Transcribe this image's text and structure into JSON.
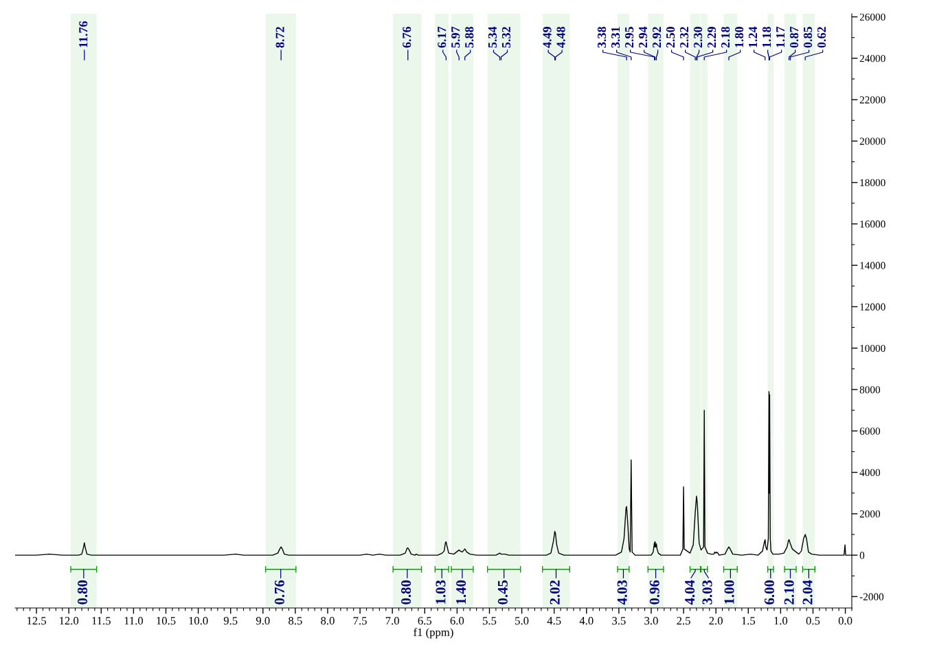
{
  "chart_data": {
    "type": "line",
    "xlabel": "f1 (ppm)",
    "color": "#000000",
    "x": [
      12.83,
      12.5,
      12.3,
      12.1,
      11.85,
      11.8,
      11.775,
      11.76,
      11.745,
      11.72,
      11.65,
      9.6,
      9.42,
      9.3,
      8.85,
      8.77,
      8.74,
      8.72,
      8.7,
      8.67,
      8.6,
      7.5,
      7.4,
      7.3,
      7.2,
      7.1,
      6.88,
      6.8,
      6.77,
      6.76,
      6.74,
      6.71,
      6.65,
      6.63,
      6.6,
      6.3,
      6.23,
      6.2,
      6.18,
      6.17,
      6.16,
      6.13,
      6.05,
      5.99,
      5.97,
      5.95,
      5.92,
      5.88,
      5.85,
      5.8,
      5.7,
      5.4,
      5.34,
      5.32,
      5.29,
      5.26,
      5.2,
      4.62,
      4.55,
      4.51,
      4.49,
      4.48,
      4.46,
      4.43,
      4.35,
      3.55,
      3.46,
      3.42,
      3.39,
      3.38,
      3.36,
      3.34,
      3.325,
      3.31,
      3.295,
      3.25,
      3.0,
      2.97,
      2.95,
      2.945,
      2.94,
      2.93,
      2.92,
      2.91,
      2.89,
      2.85,
      2.55,
      2.51,
      2.5,
      2.49,
      2.4,
      2.35,
      2.32,
      2.3,
      2.29,
      2.28,
      2.26,
      2.23,
      2.19,
      2.18,
      2.17,
      2.13,
      2.08,
      2.03,
      2.02,
      2.0,
      1.99,
      1.97,
      1.95,
      1.86,
      1.82,
      1.8,
      1.78,
      1.74,
      1.6,
      1.46,
      1.35,
      1.28,
      1.25,
      1.24,
      1.23,
      1.21,
      1.19,
      1.18,
      1.175,
      1.17,
      1.16,
      1.15,
      1.12,
      1.05,
      1.02,
      0.95,
      0.9,
      0.88,
      0.87,
      0.85,
      0.82,
      0.78,
      0.72,
      0.68,
      0.645,
      0.62,
      0.6,
      0.57,
      0.52,
      0.4,
      0.02,
      0.005,
      -0.005,
      -0.1
    ],
    "values": [
      0,
      0,
      50,
      0,
      0,
      50,
      350,
      600,
      350,
      50,
      0,
      0,
      50,
      0,
      0,
      100,
      300,
      400,
      300,
      50,
      0,
      0,
      50,
      0,
      50,
      0,
      0,
      100,
      350,
      350,
      250,
      50,
      0,
      50,
      0,
      0,
      100,
      200,
      600,
      650,
      500,
      100,
      50,
      200,
      250,
      200,
      150,
      300,
      150,
      50,
      0,
      0,
      100,
      50,
      50,
      50,
      0,
      0,
      100,
      700,
      1150,
      1050,
      500,
      100,
      0,
      0,
      150,
      800,
      2250,
      2350,
      1400,
      300,
      150,
      4600,
      150,
      0,
      0,
      150,
      600,
      400,
      650,
      400,
      550,
      300,
      100,
      0,
      0,
      300,
      3300,
      300,
      100,
      500,
      2050,
      2850,
      2600,
      2000,
      600,
      250,
      400,
      7000,
      400,
      100,
      50,
      50,
      150,
      100,
      150,
      100,
      0,
      50,
      300,
      400,
      300,
      50,
      0,
      50,
      0,
      200,
      650,
      750,
      400,
      250,
      800,
      7900,
      3000,
      7750,
      800,
      200,
      50,
      50,
      50,
      100,
      400,
      700,
      750,
      550,
      300,
      200,
      50,
      200,
      800,
      1000,
      800,
      150,
      50,
      0,
      0,
      500,
      0,
      0
    ],
    "xlim": [
      12.83,
      -0.1
    ],
    "ylim": [
      -2550,
      26150
    ],
    "xticks": [
      12.5,
      {
        "value": 12,
        "label": "12.0"
      },
      11.5,
      {
        "value": 11,
        "label": "11.0"
      },
      10.5,
      {
        "value": 10,
        "label": "10.0"
      },
      9.5,
      {
        "value": 9,
        "label": "9.0"
      },
      8.5,
      {
        "value": 8,
        "label": "8.0"
      },
      7.5,
      {
        "value": 7,
        "label": "7.0"
      },
      6.5,
      {
        "value": 6,
        "label": "6.0"
      },
      5.5,
      {
        "value": 5,
        "label": "5.0"
      },
      4.5,
      {
        "value": 4,
        "label": "4.0"
      },
      3.5,
      {
        "value": 3,
        "label": "3.0"
      },
      2.5,
      {
        "value": 2,
        "label": "2.0"
      },
      1.5,
      {
        "value": 1,
        "label": "1.0"
      },
      0.5,
      {
        "value": 0,
        "label": "0.0"
      }
    ],
    "yticks": [
      -2000,
      0,
      2000,
      4000,
      6000,
      8000,
      10000,
      12000,
      14000,
      16000,
      18000,
      20000,
      22000,
      24000,
      26000
    ],
    "annotations": [
      "11.76",
      "8.72",
      "6.76",
      "6.17",
      "5.97",
      "5.88",
      "5.34",
      "5.32",
      "4.49",
      "4.48",
      "3.38",
      "3.31",
      "2.95",
      "2.94",
      "2.92",
      "2.50",
      "2.32",
      "2.30",
      "2.29",
      "2.18",
      "1.80",
      "1.24",
      "1.18",
      "1.17",
      "0.87",
      "0.85",
      "0.62"
    ],
    "bands": [
      {
        "axis": "x",
        "from": 11.97,
        "to": 11.57,
        "label": "0.80",
        "color": "#119911"
      },
      {
        "axis": "x",
        "from": 8.96,
        "to": 8.49,
        "label": "0.76",
        "color": "#119911"
      },
      {
        "axis": "x",
        "from": 6.99,
        "to": 6.55,
        "label": "0.80",
        "color": "#119911"
      },
      {
        "axis": "x",
        "from": 6.34,
        "to": 6.13,
        "label": "1.03",
        "color": "#119911"
      },
      {
        "axis": "x",
        "from": 6.09,
        "to": 5.75,
        "label": "1.40",
        "color": "#119911"
      },
      {
        "axis": "x",
        "from": 5.53,
        "to": 5.02,
        "label": "0.45",
        "color": "#119911"
      },
      {
        "axis": "x",
        "from": 4.68,
        "to": 4.26,
        "label": "2.02",
        "color": "#119911"
      },
      {
        "axis": "x",
        "from": 3.52,
        "to": 3.34,
        "label": "4.03",
        "color": "#119911"
      },
      {
        "axis": "x",
        "from": 3.05,
        "to": 2.81,
        "label": "0.96",
        "color": "#119911"
      },
      {
        "axis": "x",
        "from": 2.4,
        "to": 2.24,
        "label": "4.04",
        "color": "#119911"
      },
      {
        "axis": "x",
        "from": 2.23,
        "to": 2.13,
        "label": "3.03",
        "color": "#119911"
      },
      {
        "axis": "x",
        "from": 1.88,
        "to": 1.67,
        "label": "1.00",
        "color": "#119911"
      },
      {
        "axis": "x",
        "from": 1.2,
        "to": 1.11,
        "label": "6.00",
        "color": "#119911"
      },
      {
        "axis": "x",
        "from": 0.94,
        "to": 0.76,
        "label": "2.10",
        "color": "#119911"
      },
      {
        "axis": "x",
        "from": 0.66,
        "to": 0.47,
        "label": "2.04",
        "color": "#119911"
      }
    ]
  }
}
